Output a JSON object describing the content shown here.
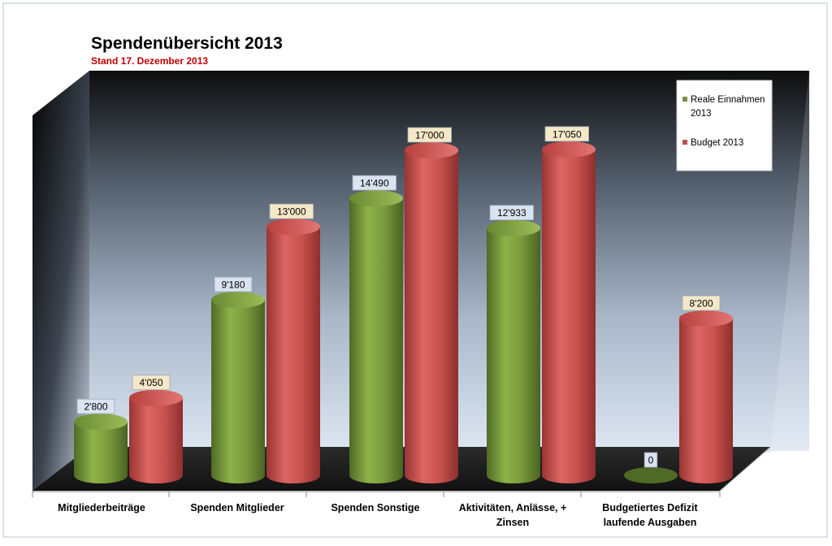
{
  "chart_data": {
    "type": "bar",
    "title": "Spendenübersicht 2013",
    "subtitle": "Stand 17. Dezember 2013",
    "categories": [
      [
        "Mitgliederbeiträge"
      ],
      [
        "Spenden Mitglieder"
      ],
      [
        "Spenden Sonstige"
      ],
      [
        "Aktivitäten, Anlässe, +",
        "Zinsen"
      ],
      [
        "Budgetiertes Defizit",
        "laufende Ausgaben"
      ]
    ],
    "series": [
      {
        "name_lines": [
          "Reale Einnahmen",
          "2013"
        ],
        "color": "#77933C",
        "label_fill": "#D9E3F1",
        "values": [
          2800,
          9180,
          14490,
          12933,
          0
        ],
        "value_labels": [
          "2'800",
          "9'180",
          "14'490",
          "12'933",
          "0"
        ]
      },
      {
        "name_lines": [
          "Budget 2013"
        ],
        "color": "#C0504D",
        "label_fill": "#F5E8C8",
        "values": [
          4050,
          13000,
          17000,
          17050,
          null
        ],
        "value_labels": [
          "4'050",
          "13'000",
          "17'000",
          "17'050",
          "8'200"
        ],
        "extra_value": 8200
      }
    ],
    "style": "3d-cylinder",
    "legend_position": "top-right",
    "grid": false,
    "ylim": [
      0,
      19000
    ],
    "colors": {
      "title": "#000000",
      "subtitle": "#C00000",
      "wall_top": "#0d0d0d",
      "wall_bottom": "#dbe5f1",
      "floor": "#1e1e1e"
    }
  }
}
